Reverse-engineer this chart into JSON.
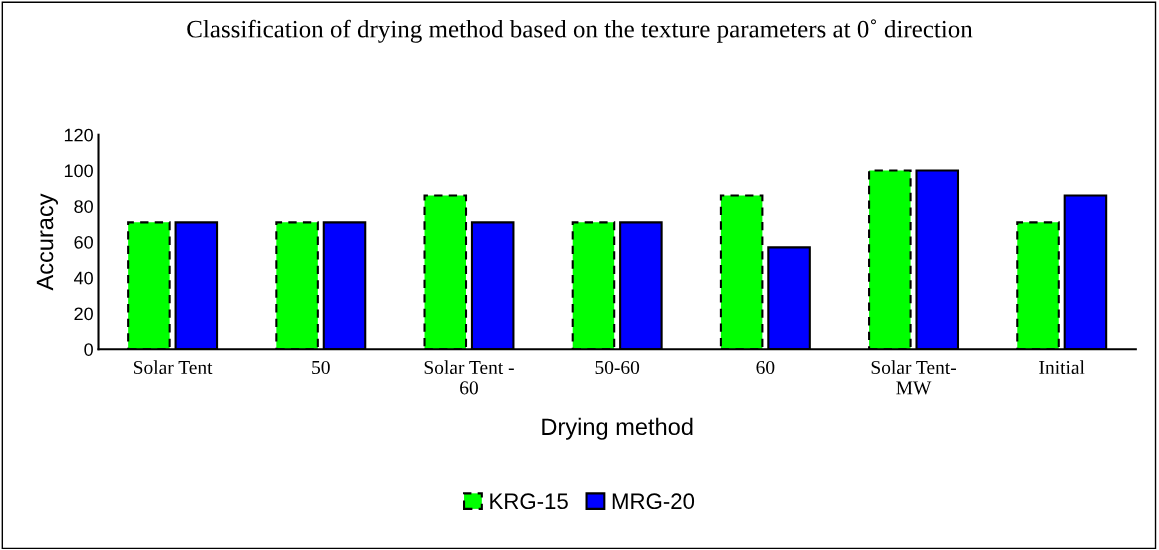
{
  "chart_data": {
    "type": "bar",
    "title": "Classification of drying method based on the texture parameters at 0˚ direction",
    "xlabel": "Drying method",
    "ylabel": "Accuracy",
    "categories": [
      "Solar Tent",
      "50",
      "Solar Tent -\n60",
      "50-60",
      "60",
      "Solar Tent-\nMW",
      "Initial"
    ],
    "series": [
      {
        "name": "KRG-15",
        "color": "#00ff00",
        "line_style": "dashed",
        "values": [
          71,
          71,
          86,
          71,
          86,
          100,
          71
        ]
      },
      {
        "name": "MRG-20",
        "color": "#0000ff",
        "line_style": "solid",
        "values": [
          71,
          71,
          71,
          71,
          57,
          100,
          86
        ]
      }
    ],
    "ylim": [
      0,
      120
    ],
    "yticks": [
      0,
      20,
      40,
      60,
      80,
      100,
      120
    ],
    "grid": false,
    "legend": "bottom"
  }
}
